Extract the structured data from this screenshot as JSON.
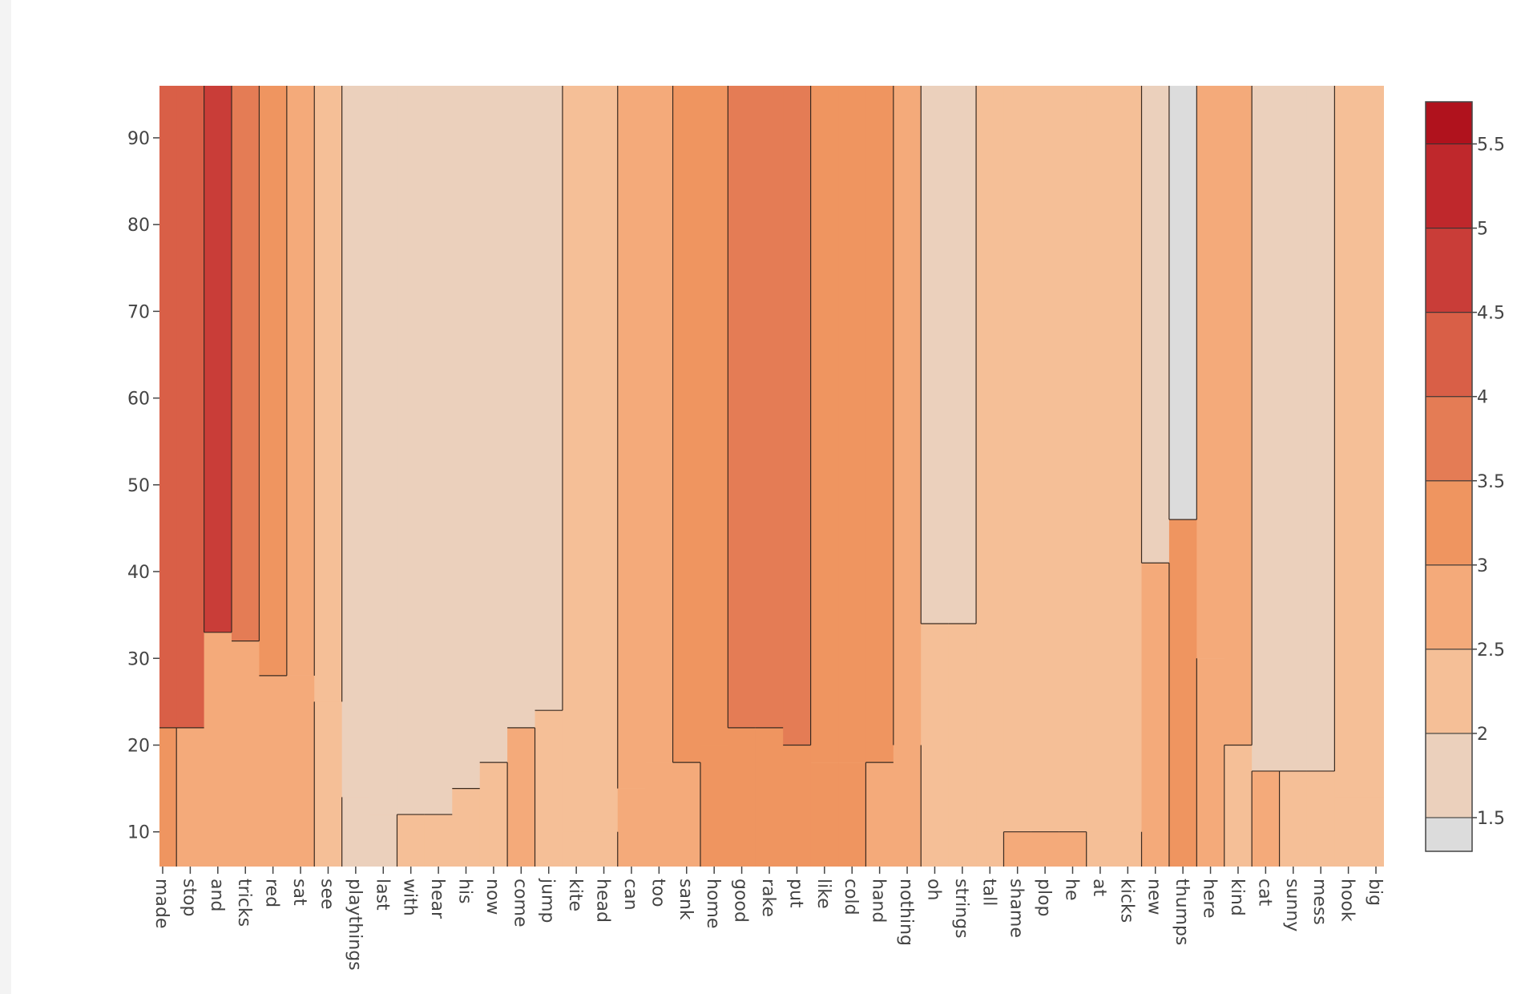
{
  "chart_data": {
    "type": "contour",
    "title": "",
    "xlabel": "",
    "ylabel": "",
    "categories": [
      "made",
      "stop",
      "and",
      "tricks",
      "red",
      "sat",
      "see",
      "playthings",
      "last",
      "with",
      "hear",
      "his",
      "now",
      "come",
      "jump",
      "kite",
      "head",
      "can",
      "too",
      "sank",
      "home",
      "good",
      "rake",
      "put",
      "like",
      "cold",
      "hand",
      "nothing",
      "oh",
      "strings",
      "tall",
      "shame",
      "plop",
      "he",
      "at",
      "kicks",
      "new",
      "thumps",
      "here",
      "kind",
      "cat",
      "sunny",
      "mess",
      "hook",
      "big"
    ],
    "y_range": [
      6,
      96
    ],
    "y_ticks": [
      10,
      20,
      30,
      40,
      50,
      60,
      70,
      80,
      90
    ],
    "y_tick_labels": [
      "10",
      "20",
      "30",
      "40",
      "50",
      "60",
      "70",
      "80",
      "90"
    ],
    "upper_values": [
      4.2,
      4.3,
      4.85,
      3.7,
      3.1,
      2.8,
      2.4,
      1.8,
      1.8,
      1.8,
      1.8,
      1.8,
      1.8,
      1.8,
      1.8,
      2.2,
      2.4,
      2.7,
      2.8,
      3.1,
      3.3,
      3.6,
      3.7,
      3.6,
      3.2,
      3.2,
      3.1,
      2.9,
      1.8,
      1.8,
      2.3,
      2.3,
      2.3,
      2.3,
      2.3,
      2.3,
      1.8,
      1.4,
      2.7,
      2.7,
      1.8,
      1.8,
      1.8,
      2.3,
      2.3
    ],
    "lower_values": [
      3.0,
      2.8,
      2.8,
      2.6,
      2.6,
      2.5,
      2.4,
      1.9,
      1.9,
      2.0,
      2.1,
      2.2,
      2.3,
      2.5,
      2.4,
      2.3,
      2.3,
      2.5,
      2.7,
      2.9,
      3.0,
      3.1,
      3.0,
      3.0,
      3.0,
      3.0,
      2.9,
      2.8,
      2.2,
      2.0,
      2.2,
      2.6,
      2.7,
      2.5,
      2.2,
      2.0,
      2.8,
      3.2,
      2.7,
      2.4,
      2.6,
      2.3,
      2.1,
      2.0,
      2.2
    ],
    "transition_y": [
      22,
      22,
      33,
      32,
      28,
      28,
      25,
      14,
      12,
      12,
      12,
      15,
      18,
      22,
      24,
      10,
      10,
      15,
      18,
      18,
      20,
      22,
      22,
      20,
      18,
      18,
      18,
      20,
      34,
      34,
      10,
      10,
      10,
      10,
      10,
      10,
      41,
      46,
      30,
      20,
      17,
      17,
      17,
      14,
      14
    ],
    "colorscale": {
      "min": 1.3,
      "max": 5.75,
      "levels": [
        1.5,
        2,
        2.5,
        3,
        3.5,
        4,
        4.5,
        5,
        5.5
      ],
      "tick_labels": [
        "1.5",
        "2",
        "2.5",
        "3",
        "3.5",
        "4",
        "4.5",
        "5",
        "5.5"
      ],
      "colors": [
        "#dcdcdc",
        "#ebd0bc",
        "#f5bf97",
        "#f4aa7a",
        "#ef9560",
        "#e47c55",
        "#d95f47",
        "#c93d38",
        "#bf282c",
        "#b0121d"
      ]
    }
  }
}
